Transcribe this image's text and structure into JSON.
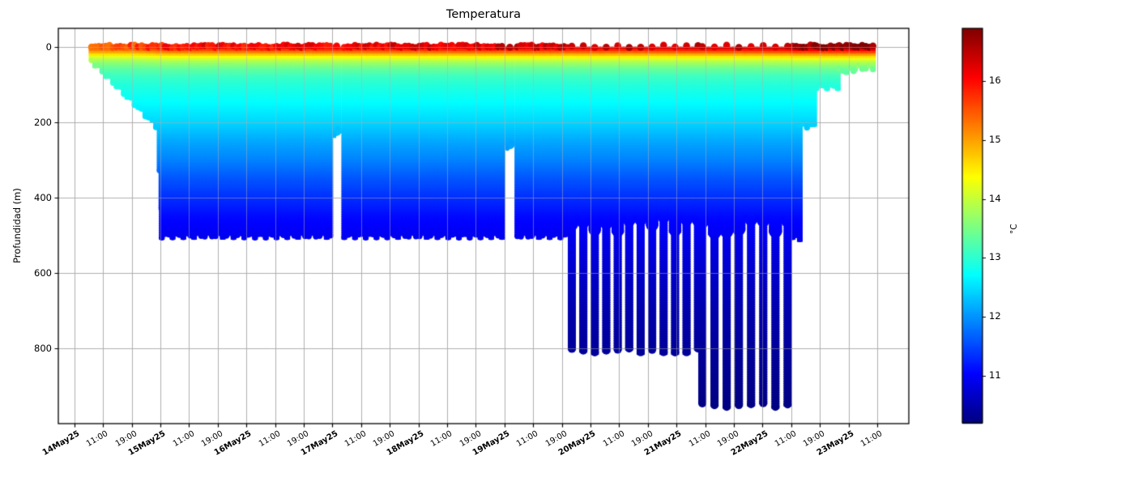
{
  "chart_data": {
    "type": "scatter",
    "title": "Temperatura",
    "ylabel": "Profundidad (m)",
    "grid": true,
    "background": "#ffffff",
    "grid_color": "#b0b0b0",
    "spine_color": "#000000",
    "y_axis": {
      "ticks": [
        0,
        200,
        400,
        600,
        800
      ],
      "tick_labels": [
        "0",
        "200",
        "400",
        "600",
        "800"
      ],
      "ylim_top_m": -50,
      "ylim_bottom_m": 1000,
      "inverted": true
    },
    "x_axis": {
      "hours_between_ticks": 8,
      "tick_labels": [
        {
          "label": "14May25",
          "bold": true
        },
        {
          "label": "11:00",
          "bold": false
        },
        {
          "label": "19:00",
          "bold": false
        },
        {
          "label": "15May25",
          "bold": true
        },
        {
          "label": "11:00",
          "bold": false
        },
        {
          "label": "19:00",
          "bold": false
        },
        {
          "label": "16May25",
          "bold": true
        },
        {
          "label": "11:00",
          "bold": false
        },
        {
          "label": "19:00",
          "bold": false
        },
        {
          "label": "17May25",
          "bold": true
        },
        {
          "label": "11:00",
          "bold": false
        },
        {
          "label": "19:00",
          "bold": false
        },
        {
          "label": "18May25",
          "bold": true
        },
        {
          "label": "11:00",
          "bold": false
        },
        {
          "label": "19:00",
          "bold": false
        },
        {
          "label": "19May25",
          "bold": true
        },
        {
          "label": "11:00",
          "bold": false
        },
        {
          "label": "19:00",
          "bold": false
        },
        {
          "label": "20May25",
          "bold": true
        },
        {
          "label": "11:00",
          "bold": false
        },
        {
          "label": "19:00",
          "bold": false
        },
        {
          "label": "21May25",
          "bold": true
        },
        {
          "label": "11:00",
          "bold": false
        },
        {
          "label": "19:00",
          "bold": false
        },
        {
          "label": "22May25",
          "bold": true
        },
        {
          "label": "11:00",
          "bold": false
        },
        {
          "label": "19:00",
          "bold": false
        },
        {
          "label": "23May25",
          "bold": true
        },
        {
          "label": "11:00",
          "bold": false
        }
      ]
    },
    "colorbar": {
      "label": "°C",
      "colormap": "jet",
      "vmin": 10.2,
      "vmax": 16.9,
      "tick_values": [
        16,
        15,
        14,
        13,
        12,
        11
      ],
      "tick_labels": [
        "16",
        "15",
        "14",
        "13",
        "12",
        "11"
      ]
    },
    "temperature_profile": {
      "depth_m": [
        0,
        5,
        10,
        15,
        20,
        25,
        30,
        40,
        50,
        60,
        80,
        100,
        130,
        160,
        200,
        250,
        300,
        350,
        400,
        450,
        500,
        550,
        600,
        700,
        800,
        900,
        960
      ],
      "temp_c": [
        16.1,
        15.9,
        15.55,
        15.2,
        14.85,
        14.5,
        14.2,
        13.8,
        13.55,
        13.35,
        13.1,
        12.95,
        12.8,
        12.65,
        12.45,
        12.15,
        11.9,
        11.6,
        11.35,
        11.1,
        10.95,
        10.8,
        10.7,
        10.5,
        10.38,
        10.28,
        10.22
      ]
    },
    "surface_temp_timeline": [
      [
        0,
        15.5
      ],
      [
        16,
        15.6
      ],
      [
        22,
        15.8
      ],
      [
        26,
        16.0
      ],
      [
        60,
        16.1
      ],
      [
        90,
        16.2
      ],
      [
        120,
        16.3
      ],
      [
        150,
        16.35
      ],
      [
        175,
        16.45
      ],
      [
        199,
        16.55
      ],
      [
        201,
        16.75
      ],
      [
        223,
        16.8
      ]
    ],
    "dive_segments": [
      {
        "mode": "dense",
        "t0": 4.8,
        "t1": 23.6,
        "dt": 1.0,
        "depth0": 35,
        "depth1": 215
      },
      {
        "mode": "dense",
        "t0": 23.8,
        "t1": 24.3,
        "dt": 0.5,
        "depth0": 330,
        "depth1": 430
      },
      {
        "mode": "dense",
        "t0": 24.4,
        "t1": 71.8,
        "dt": 1.0,
        "depth0": 500,
        "depth1": 500
      },
      {
        "mode": "notch",
        "t": 73.2,
        "depth": 235
      },
      {
        "mode": "dense",
        "t0": 75.3,
        "t1": 120.1,
        "dt": 1.0,
        "depth0": 500,
        "depth1": 500
      },
      {
        "mode": "notch",
        "t": 121.5,
        "depth": 270
      },
      {
        "mode": "dense",
        "t0": 123.6,
        "t1": 138.6,
        "dt": 1.0,
        "depth0": 500,
        "depth1": 500
      },
      {
        "mode": "spike",
        "t0": 138.8,
        "t1": 174.2,
        "dt": 3.2,
        "depth": 805,
        "merge_depth": 470
      },
      {
        "mode": "spike",
        "t0": 175.2,
        "t1": 199.8,
        "dt": 3.4,
        "depth": 950,
        "merge_depth": 475
      },
      {
        "mode": "dense",
        "t0": 200.4,
        "t1": 202.4,
        "dt": 1.0,
        "depth0": 505,
        "depth1": 505
      },
      {
        "mode": "dense",
        "t0": 202.4,
        "t1": 207.0,
        "dt": 1.0,
        "depth0": 208,
        "depth1": 208
      },
      {
        "mode": "dense",
        "t0": 207.0,
        "t1": 213.4,
        "dt": 1.0,
        "depth0": 104,
        "depth1": 104
      },
      {
        "mode": "dense",
        "t0": 213.4,
        "t1": 217.8,
        "dt": 1.0,
        "depth0": 62,
        "depth1": 62
      },
      {
        "mode": "dense",
        "t0": 217.8,
        "t1": 222.8,
        "dt": 1.0,
        "depth0": 55,
        "depth1": 55
      }
    ]
  }
}
